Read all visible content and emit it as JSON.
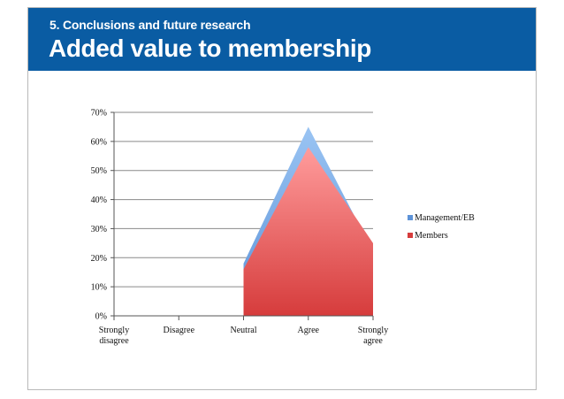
{
  "slide": {
    "section": "5. Conclusions and future research",
    "title": "Added value to membership"
  },
  "colors": {
    "header_bg": "#0a5ca3",
    "management_top": "#9ac4f3",
    "management_bottom": "#5d93d8",
    "members_top": "#ff9c9c",
    "members_bottom": "#d63c3c",
    "gridline": "#8a8a8a"
  },
  "chart_data": {
    "type": "area",
    "title": "",
    "xlabel": "",
    "ylabel": "",
    "categories": [
      [
        "Strongly",
        "disagree"
      ],
      [
        "Disagree"
      ],
      [
        "Neutral"
      ],
      [
        "Agree"
      ],
      [
        "Strongly",
        "agree"
      ]
    ],
    "series": [
      {
        "name": "Management/EB",
        "values": [
          0,
          0,
          18,
          65,
          22
        ]
      },
      {
        "name": "Members",
        "values": [
          0,
          0,
          16,
          58,
          25
        ]
      }
    ],
    "ylim": [
      0,
      70
    ],
    "yticks": [
      "0%",
      "10%",
      "20%",
      "30%",
      "40%",
      "50%",
      "60%",
      "70%"
    ],
    "grid": true,
    "legend": "right"
  }
}
